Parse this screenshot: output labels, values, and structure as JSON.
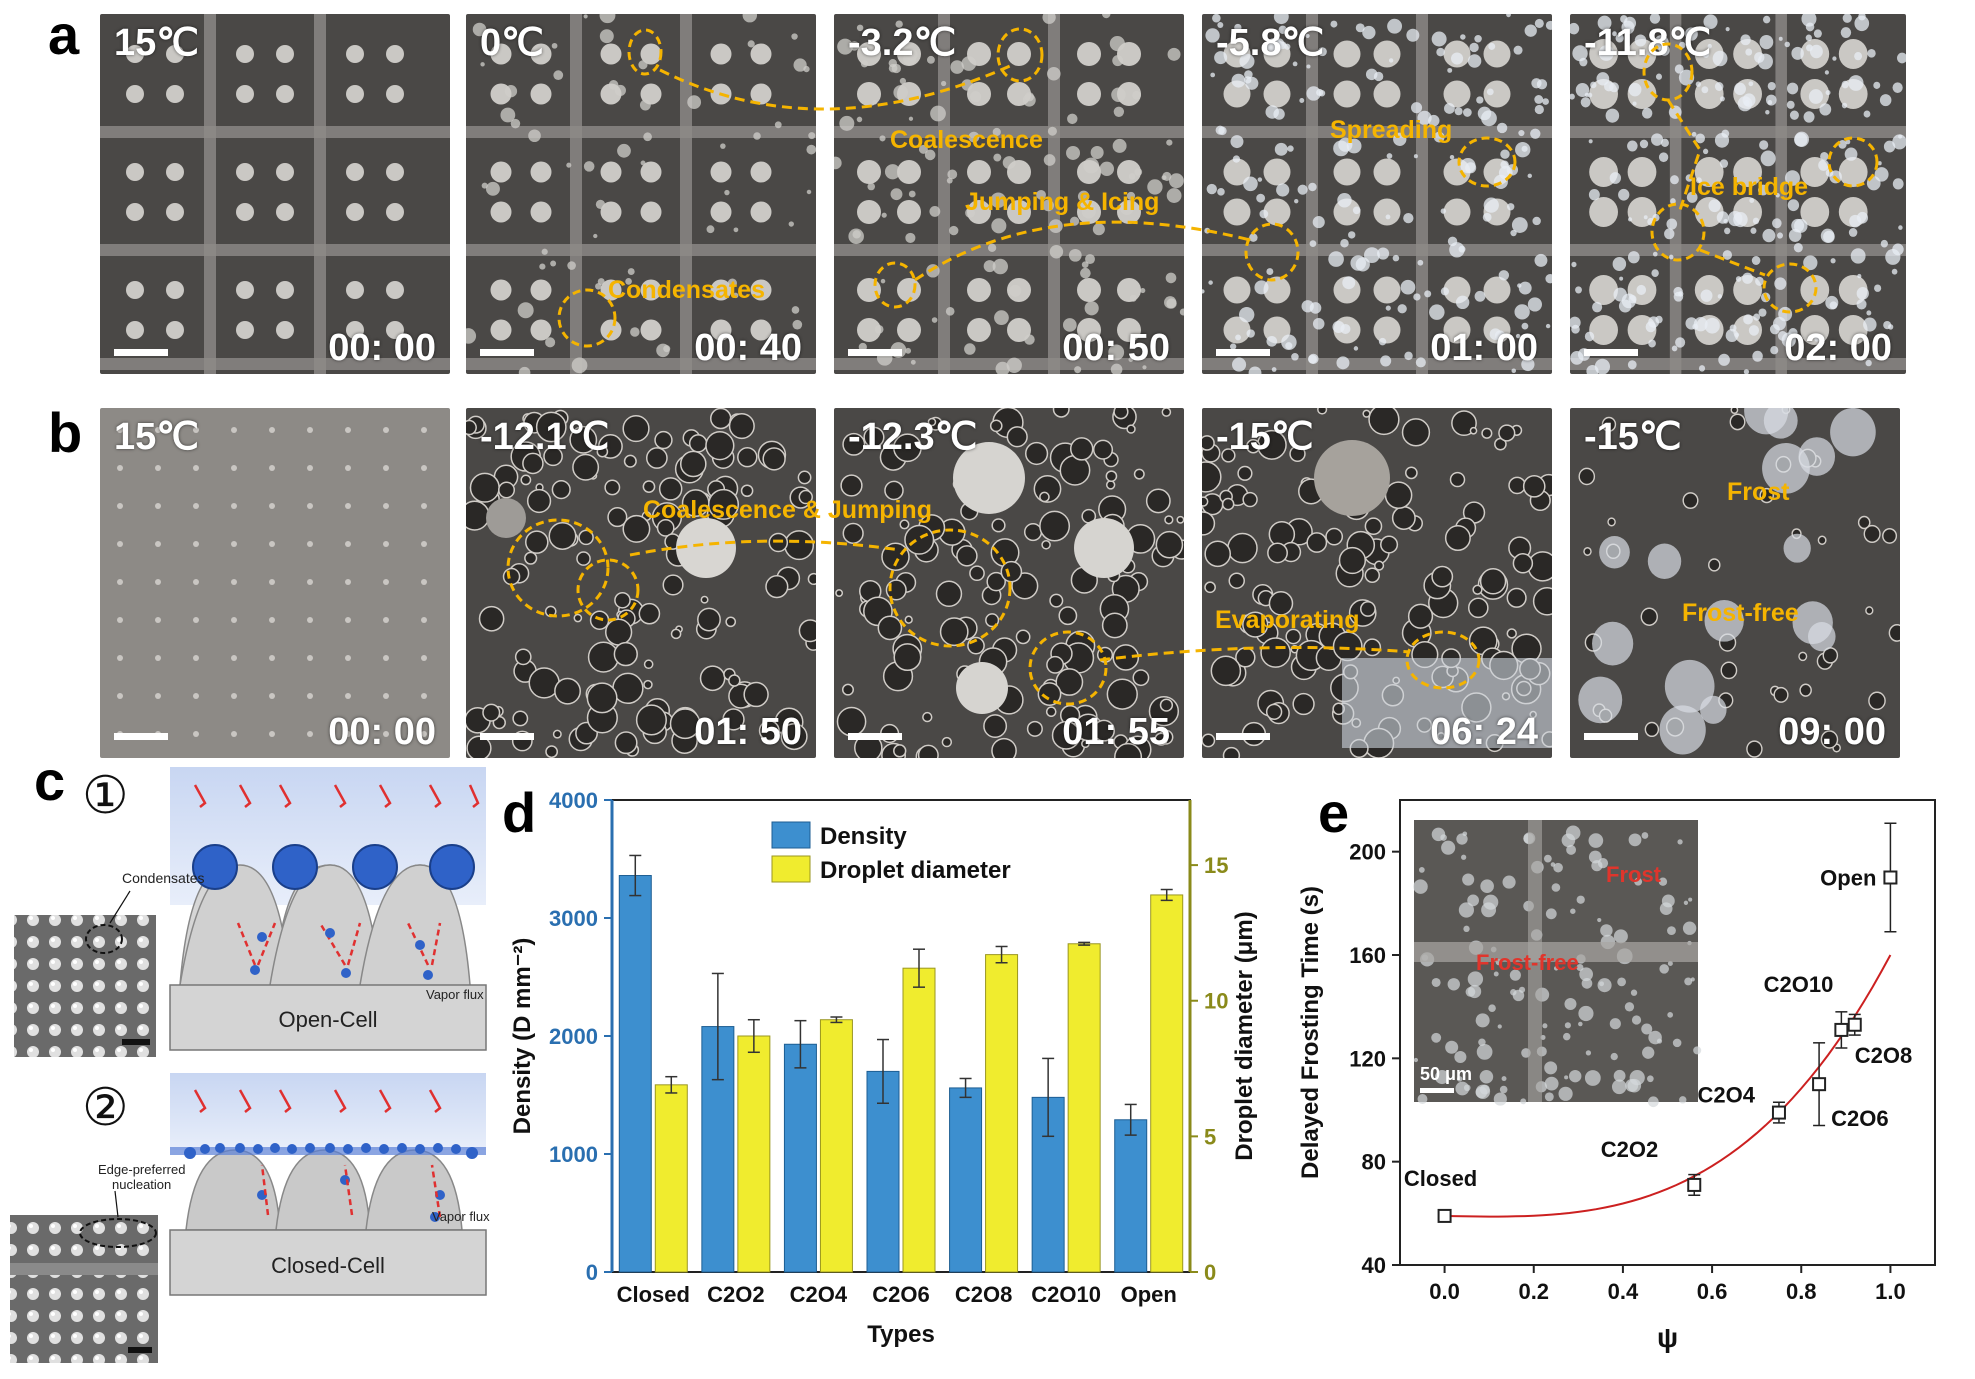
{
  "figure_labels": {
    "a": "a",
    "b": "b",
    "c": "c",
    "d": "d",
    "e": "e"
  },
  "row_a": [
    {
      "temp": "15℃",
      "time": "00: 00",
      "annotations": []
    },
    {
      "temp": "0℃",
      "time": "00: 40",
      "annotations": [
        "Condensates"
      ]
    },
    {
      "temp": "-3.2℃",
      "time": "00: 50",
      "annotations": [
        "Coalescence",
        "Jumping & Icing"
      ]
    },
    {
      "temp": "-5.8℃",
      "time": "01: 00",
      "annotations": [
        "Spreading"
      ]
    },
    {
      "temp": "-11.8℃",
      "time": "02: 00",
      "annotations": [
        "Ice bridge"
      ]
    }
  ],
  "row_b": [
    {
      "temp": "15℃",
      "time": "00: 00",
      "annotations": []
    },
    {
      "temp": "-12.1℃",
      "time": "01: 50",
      "annotations": [
        "Coalescence & Jumping"
      ]
    },
    {
      "temp": "-12.3℃",
      "time": "01: 55",
      "annotations": []
    },
    {
      "temp": "-15℃",
      "time": "06: 24",
      "annotations": [
        "Evaporating"
      ]
    },
    {
      "temp": "-15℃",
      "time": "09: 00",
      "annotations": [
        "Frost",
        "Frost-free"
      ]
    }
  ],
  "panel_c": {
    "step1": "①",
    "step2": "②",
    "condensates": "Condensates",
    "vapor_flux": "Vapor flux",
    "open_cell": "Open-Cell",
    "closed_cell": "Closed-Cell",
    "edge_nucleation_1": "Edge-preferred",
    "edge_nucleation_2": "nucleation"
  },
  "colors": {
    "annotation": "#f5b400",
    "density_bar": "#3d8fcf",
    "diameter_bar": "#f0ec2e",
    "fit_line": "#cc2020",
    "inset_label": "#e0352c",
    "left_axis": "#2a6fb0",
    "right_axis": "#8a8a1a"
  },
  "chart_data": [
    {
      "type": "bar",
      "title": "",
      "categories": [
        "Closed",
        "C2O2",
        "C2O4",
        "C2O6",
        "C2O8",
        "C2O10",
        "Open"
      ],
      "xlabel": "Types",
      "series": [
        {
          "name": "Density",
          "axis": "left",
          "values": [
            3360,
            2080,
            1930,
            1700,
            1560,
            1480,
            1290
          ],
          "errors": [
            170,
            450,
            200,
            270,
            80,
            330,
            130
          ]
        },
        {
          "name": "Droplet diameter",
          "axis": "right",
          "values": [
            6.9,
            8.7,
            9.3,
            11.2,
            11.7,
            12.1,
            13.9
          ],
          "errors": [
            0.3,
            0.6,
            0.1,
            0.7,
            0.3,
            0.05,
            0.2
          ]
        }
      ],
      "ylabel_left": "Density (D mm⁻²)",
      "ylabel_right": "Droplet diameter (μm)",
      "ylim_left": [
        0,
        4000
      ],
      "ylim_right": [
        0,
        17.4
      ],
      "yticks_left": [
        "0",
        "1000",
        "2000",
        "3000",
        "4000"
      ],
      "yticks_right": [
        "0",
        "5",
        "10",
        "15"
      ],
      "legend": "top-center"
    },
    {
      "type": "scatter",
      "xlabel": "ψ",
      "ylabel": "Delayed Frosting Time (s)",
      "xlim": [
        -0.1,
        1.1
      ],
      "ylim": [
        40,
        220
      ],
      "xticks": [
        "0.0",
        "0.2",
        "0.4",
        "0.6",
        "0.8",
        "1.0"
      ],
      "yticks": [
        "40",
        "80",
        "120",
        "160",
        "200"
      ],
      "points": [
        {
          "label": "Closed",
          "x": 0.0,
          "y": 59,
          "err": 2
        },
        {
          "label": "C2O2",
          "x": 0.56,
          "y": 71,
          "err": 4
        },
        {
          "label": "C2O4",
          "x": 0.75,
          "y": 99,
          "err": 4
        },
        {
          "label": "C2O6",
          "x": 0.84,
          "y": 110,
          "err": 16
        },
        {
          "label": "C2O10",
          "x": 0.89,
          "y": 131,
          "err": 7
        },
        {
          "label": "C2O8",
          "x": 0.92,
          "y": 133,
          "err": 4
        },
        {
          "label": "Open",
          "x": 1.0,
          "y": 190,
          "err": 21
        }
      ],
      "fit": {
        "type": "polynomial",
        "y0": 59,
        "y_at_1": 160
      },
      "inset": {
        "frost": "Frost",
        "frost_free": "Frost-free",
        "scale": "50 μm"
      }
    }
  ]
}
